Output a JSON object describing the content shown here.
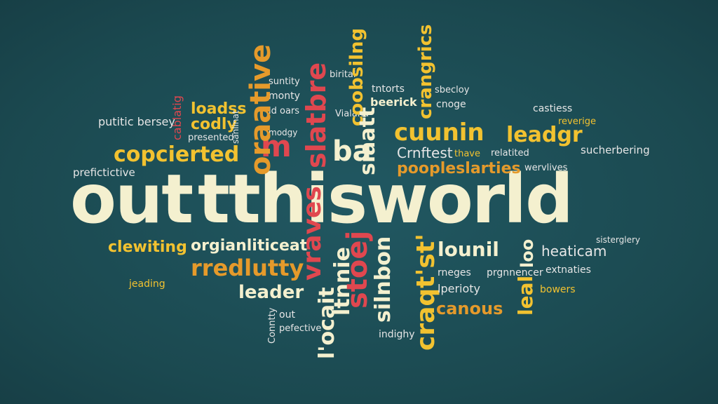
{
  "colors": {
    "background": "#1d4d55",
    "cream": "#f4f0cf",
    "yellow": "#f2c230",
    "orange": "#e59a2b",
    "red": "#e0474f",
    "light": "#e6e6e6"
  },
  "title": {
    "part1": "out",
    "part2": "tthisworld"
  },
  "words": [
    "putitic bersey",
    "loadss",
    "codly",
    "presented",
    "copcierted",
    "prefictictive",
    "suntity",
    "monty",
    "ld oars",
    "modgy",
    "m",
    "slatbre",
    "ba",
    "birital",
    "Vialana",
    "beerick",
    "cuunin",
    "leadgr",
    "Crnftest",
    "poopleslarties",
    "tntorts",
    "sbecloy",
    "cnoge",
    "castiess",
    "reverige",
    "sucherbering",
    "wervlives",
    "thave",
    "relatited",
    "clewiting",
    "orgianliticeat",
    "rredlutty",
    "leader",
    "lounil",
    "heaticam",
    "sisterglery",
    "extnaties",
    "bowers",
    "rneges",
    "prgnnencer",
    "lperioty",
    "canous",
    "jeading",
    "pefective",
    "out",
    "l'ocait",
    "indighy",
    "oraative",
    "coobsilng",
    "crangrics",
    "siaatt",
    "vraves",
    "ltnnie",
    "stoej",
    "silnbon",
    "craqt'st'",
    "leal",
    "loo",
    "Conntty",
    "cablatig",
    "sanlinat"
  ]
}
